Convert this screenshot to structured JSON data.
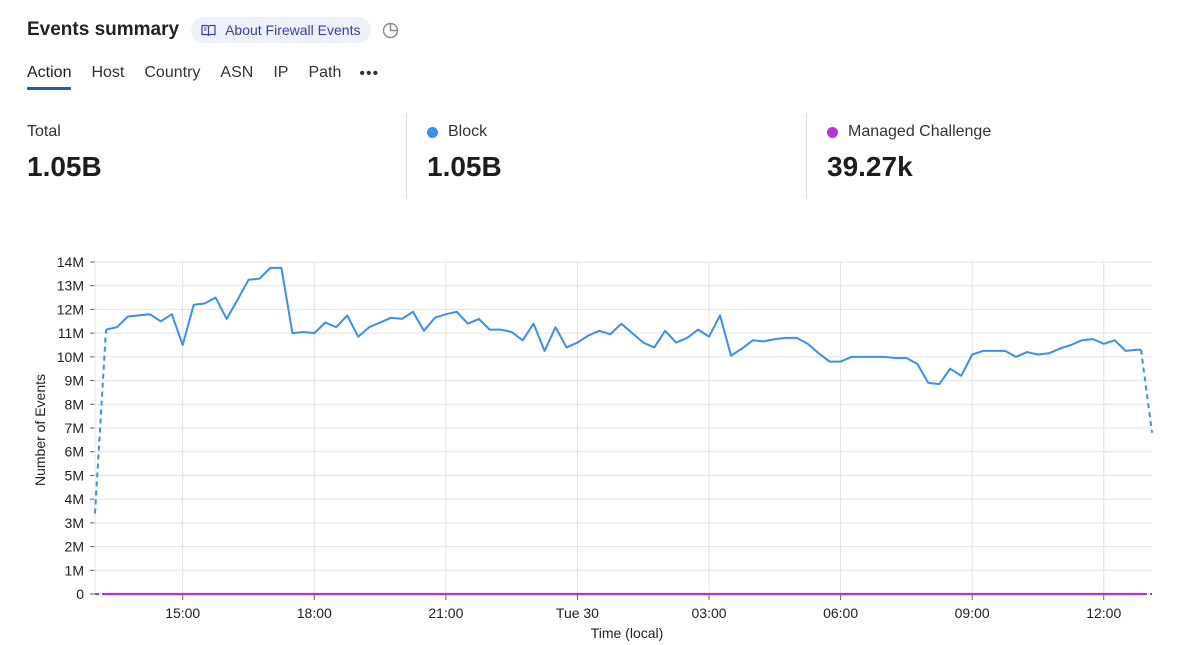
{
  "header": {
    "title": "Events summary",
    "about_label": "About Firewall Events",
    "icons": [
      "book-icon",
      "pie-chart-icon"
    ]
  },
  "tabs": [
    {
      "label": "Action",
      "active": true
    },
    {
      "label": "Host",
      "active": false
    },
    {
      "label": "Country",
      "active": false
    },
    {
      "label": "ASN",
      "active": false
    },
    {
      "label": "IP",
      "active": false
    },
    {
      "label": "Path",
      "active": false
    }
  ],
  "more_label": "•••",
  "stats": [
    {
      "label": "Total",
      "value": "1.05B",
      "color": null
    },
    {
      "label": "Block",
      "value": "1.05B",
      "color": "#3b8ff0"
    },
    {
      "label": "Managed Challenge",
      "value": "39.27k",
      "color": "#b335d9"
    }
  ],
  "chart_data": {
    "type": "line",
    "xlabel": "Time (local)",
    "ylabel": "Number of Events",
    "ylim": [
      0,
      14000000
    ],
    "y_ticks": [
      "0",
      "1M",
      "2M",
      "3M",
      "4M",
      "5M",
      "6M",
      "7M",
      "8M",
      "9M",
      "10M",
      "11M",
      "12M",
      "13M",
      "14M"
    ],
    "x_ticks": [
      "15:00",
      "18:00",
      "21:00",
      "Tue 30",
      "03:00",
      "06:00",
      "09:00",
      "12:00"
    ],
    "x_tick_hours": [
      15,
      18,
      21,
      24,
      27,
      30,
      33,
      36
    ],
    "xlim_hours": [
      13.0,
      37.1
    ],
    "grid": true,
    "series": [
      {
        "name": "Block",
        "color": "#3b8ff0",
        "x_hours": [
          13.0,
          13.25,
          13.5,
          13.75,
          14.0,
          14.25,
          14.5,
          14.75,
          15.0,
          15.25,
          15.5,
          15.75,
          16.0,
          16.25,
          16.5,
          16.75,
          17.0,
          17.25,
          17.5,
          17.75,
          18.0,
          18.25,
          18.5,
          18.75,
          19.0,
          19.25,
          19.5,
          19.75,
          20.0,
          20.25,
          20.5,
          20.75,
          21.0,
          21.25,
          21.5,
          21.75,
          22.0,
          22.25,
          22.5,
          22.75,
          23.0,
          23.25,
          23.5,
          23.75,
          24.0,
          24.25,
          24.5,
          24.75,
          25.0,
          25.25,
          25.5,
          25.75,
          26.0,
          26.25,
          26.5,
          26.75,
          27.0,
          27.25,
          27.5,
          27.75,
          28.0,
          28.25,
          28.5,
          28.75,
          29.0,
          29.25,
          29.5,
          29.75,
          30.0,
          30.25,
          30.5,
          30.75,
          31.0,
          31.25,
          31.5,
          31.75,
          32.0,
          32.25,
          32.5,
          32.75,
          33.0,
          33.25,
          33.5,
          33.75,
          34.0,
          34.25,
          34.5,
          34.75,
          35.0,
          35.25,
          35.5,
          35.75,
          36.0,
          36.25,
          36.5,
          36.75,
          36.85,
          37.1
        ],
        "values": [
          3400000,
          11150000,
          11250000,
          11700000,
          11750000,
          11800000,
          11500000,
          11800000,
          10500000,
          12200000,
          12250000,
          12500000,
          11600000,
          12400000,
          13250000,
          13300000,
          13750000,
          13750000,
          11000000,
          11050000,
          11000000,
          11450000,
          11250000,
          11750000,
          10850000,
          11250000,
          11450000,
          11650000,
          11600000,
          11900000,
          11100000,
          11650000,
          11800000,
          11900000,
          11400000,
          11600000,
          11150000,
          11150000,
          11050000,
          10700000,
          11400000,
          10250000,
          11250000,
          10400000,
          10600000,
          10900000,
          11100000,
          10950000,
          11400000,
          11000000,
          10600000,
          10400000,
          11100000,
          10600000,
          10800000,
          11150000,
          10850000,
          11750000,
          10050000,
          10350000,
          10700000,
          10650000,
          10750000,
          10800000,
          10800000,
          10550000,
          10150000,
          9800000,
          9800000,
          10000000,
          10000000,
          10000000,
          10000000,
          9950000,
          9950000,
          9700000,
          8900000,
          8850000,
          9500000,
          9200000,
          10100000,
          10250000,
          10250000,
          10250000,
          10000000,
          10200000,
          10100000,
          10150000,
          10350000,
          10500000,
          10700000,
          10750000,
          10550000,
          10700000,
          10250000,
          10300000,
          10300000,
          6800000
        ],
        "dashed_segments": "first and last"
      },
      {
        "name": "Managed Challenge",
        "color": "#b335d9",
        "x_hours": [
          13.0,
          37.1
        ],
        "values": [
          0,
          0
        ]
      }
    ]
  }
}
